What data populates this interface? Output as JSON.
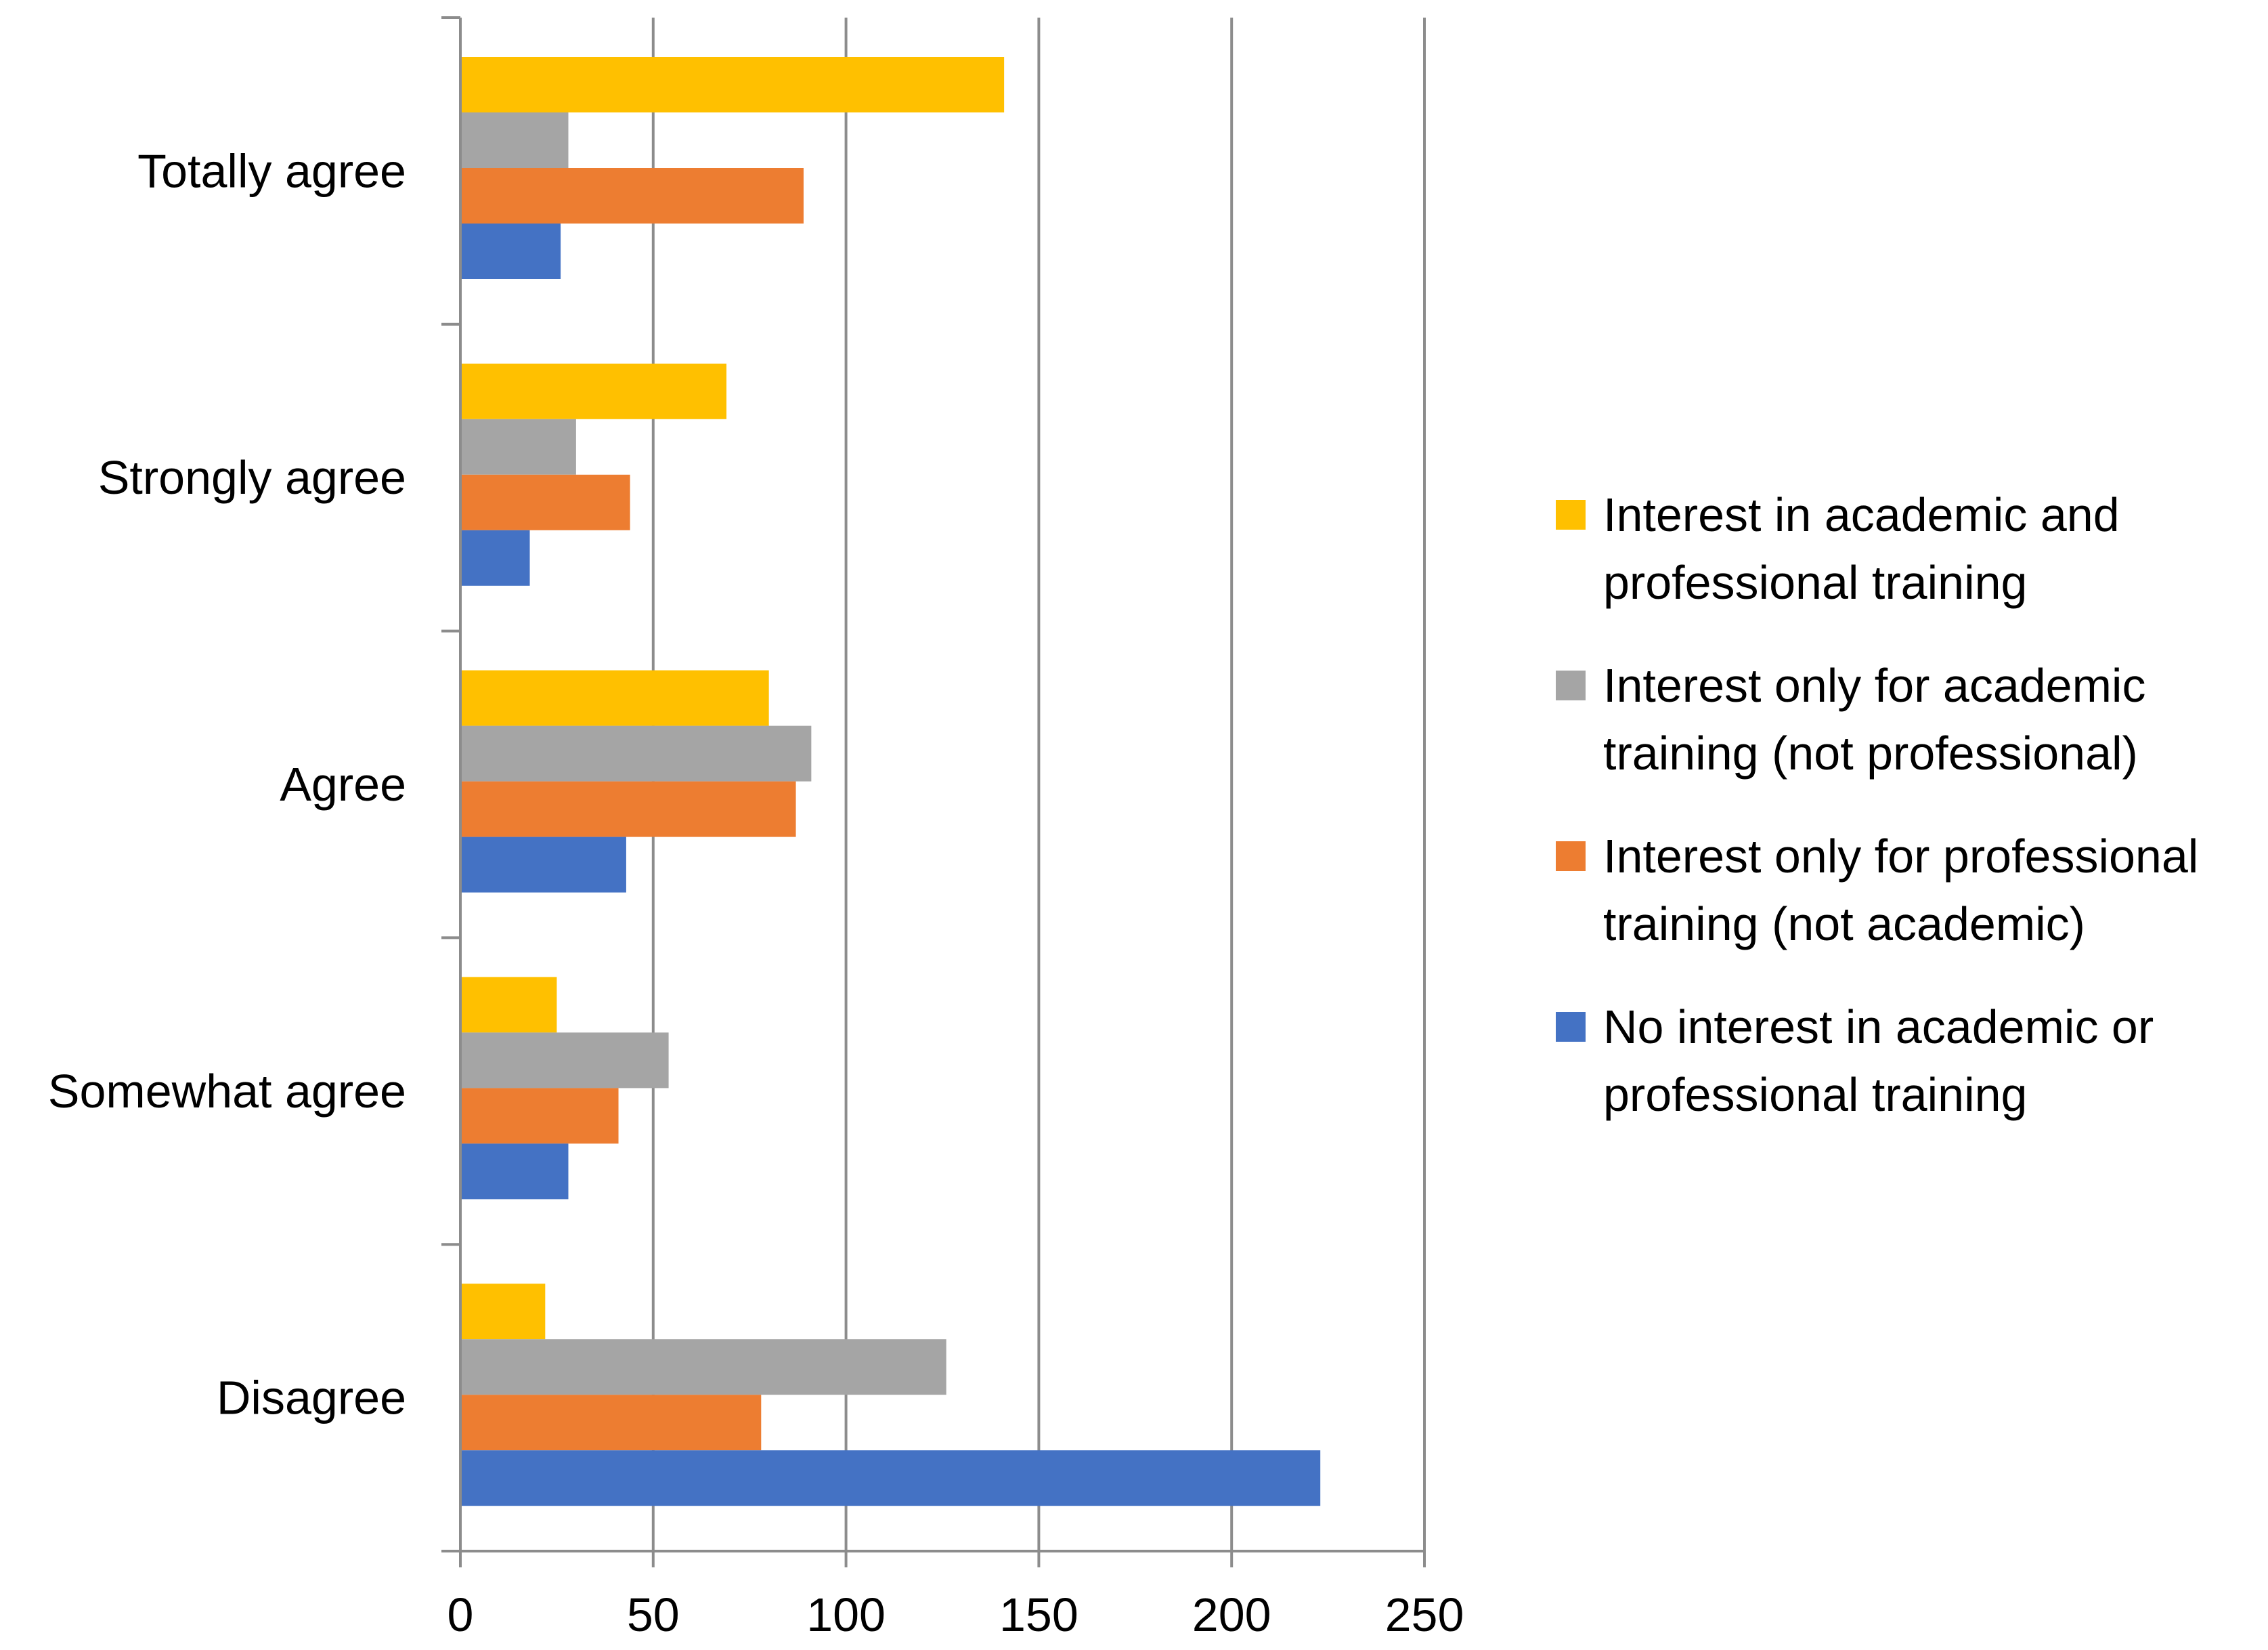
{
  "chart_data": {
    "type": "bar",
    "orientation": "horizontal",
    "title": "",
    "xlabel": "",
    "ylabel": "",
    "xlim": [
      0,
      250
    ],
    "x_ticks": [
      0,
      50,
      100,
      150,
      200,
      250
    ],
    "x_tick_labels": [
      "0",
      "50",
      "100",
      "150",
      "200",
      "250"
    ],
    "grid": "vertical",
    "legend_position": "right",
    "categories": [
      "Totally agree",
      "Strongly agree",
      "Agree",
      "Somewhat agree",
      "Disagree"
    ],
    "series": [
      {
        "name": "Interest in academic and professional training",
        "legend_lines": [
          "Interest in academic and",
          "professional training"
        ],
        "color": "#FFC000",
        "values": [
          141,
          69,
          80,
          25,
          22
        ]
      },
      {
        "name": "Interest only for academic training (not professional)",
        "legend_lines": [
          "Interest only for academic",
          "training (not professional)"
        ],
        "color": "#A5A5A5",
        "values": [
          28,
          30,
          91,
          54,
          126
        ]
      },
      {
        "name": "Interest only for professional training (not academic)",
        "legend_lines": [
          "Interest only for professional",
          "training (not academic)"
        ],
        "color": "#ED7D31",
        "values": [
          89,
          44,
          87,
          41,
          78
        ]
      },
      {
        "name": "No interest in academic or professional training",
        "legend_lines": [
          "No interest in academic or",
          "professional training"
        ],
        "color": "#4472C4",
        "values": [
          26,
          18,
          43,
          28,
          223
        ]
      }
    ]
  }
}
